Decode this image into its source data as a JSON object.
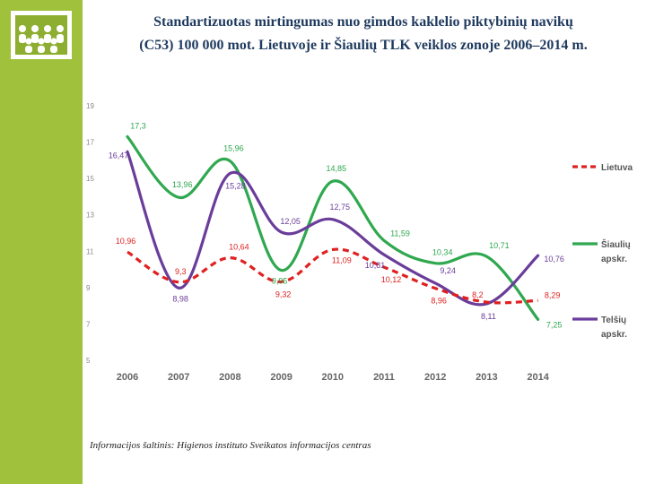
{
  "slide": {
    "title_line1": "Standartizuotas mirtingumas nuo gimdos kaklelio piktybinių navikų",
    "title_line2": "(C53) 100 000 mot. Lietuvoje ir Šiaulių TLK veiklos zonoje 2006–2014 m.",
    "source": "Informacijos šaltinis: Higienos instituto Sveikatos informacijos centras"
  },
  "chart_data": {
    "type": "line",
    "title": "",
    "xlabel": "",
    "ylabel": "",
    "categories": [
      "2006",
      "2007",
      "2008",
      "2009",
      "2010",
      "2011",
      "2012",
      "2013",
      "2014"
    ],
    "yticks": [
      "19",
      "17",
      "15",
      "13",
      "11",
      "9",
      "7",
      "5"
    ],
    "ylim": [
      5,
      19
    ],
    "grid": false,
    "legend_position": "right",
    "series": [
      {
        "name": "Lietuva",
        "legend_lines": [
          "Lietuva"
        ],
        "color": "#e02020",
        "style": "dashed",
        "values": [
          10.96,
          9.3,
          10.64,
          9.32,
          11.09,
          10.12,
          8.96,
          8.2,
          8.29
        ],
        "labels": [
          "10,96",
          "9,3",
          "10,64",
          "9,32",
          "11,09",
          "10,12",
          "8,96",
          "8,2",
          "8,29"
        ]
      },
      {
        "name": "Šiaulių apskr.",
        "legend_lines": [
          "Šiaulių",
          "apskr."
        ],
        "color": "#2fa84f",
        "style": "solid",
        "values": [
          17.3,
          13.96,
          15.96,
          9.95,
          14.85,
          11.59,
          10.34,
          10.71,
          7.25
        ],
        "labels": [
          "17,3",
          "13,96",
          "15,96",
          "9,95",
          "14,85",
          "11,59",
          "10,34",
          "10,71",
          "7,25"
        ]
      },
      {
        "name": "Telšių apskr.",
        "legend_lines": [
          "Telšių",
          "apskr."
        ],
        "color": "#6a3d9a",
        "style": "solid",
        "values": [
          16.47,
          8.98,
          15.28,
          12.05,
          12.75,
          10.81,
          9.24,
          8.11,
          10.76
        ],
        "labels": [
          "16,47",
          "8,98",
          "15,28",
          "12,05",
          "12,75",
          "10,81",
          "9,24",
          "8,11",
          "10,76"
        ]
      }
    ]
  },
  "colors": {
    "sidebar": "#9fc13b",
    "title": "#1f3a5f"
  }
}
